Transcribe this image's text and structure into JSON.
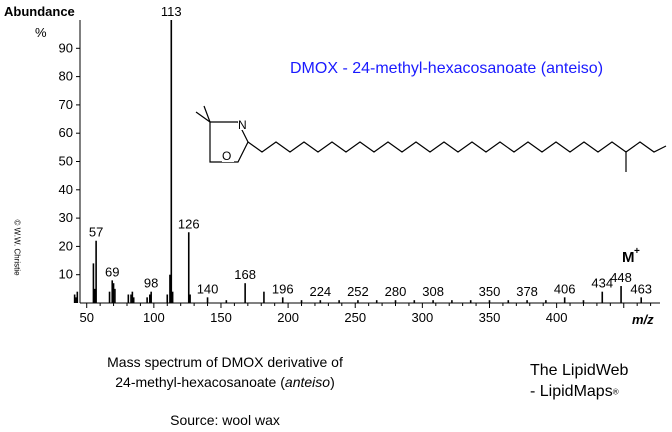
{
  "chart_data": {
    "type": "bar",
    "title": "DMOX  -  24-methyl-hexacosanoate  (anteiso)",
    "ylabel": "Abundance",
    "yunit": "%",
    "xlabel": "m/z",
    "xlim": [
      45,
      477
    ],
    "ylim": [
      0,
      100
    ],
    "x_ticks": [
      50,
      100,
      150,
      200,
      250,
      300,
      350,
      400
    ],
    "y_ticks": [
      10,
      20,
      30,
      40,
      50,
      60,
      70,
      80,
      90
    ],
    "molecular_ion_label": "M",
    "molecular_ion_sup": "+",
    "peaks": [
      {
        "x": 41,
        "y": 3
      },
      {
        "x": 42,
        "y": 2
      },
      {
        "x": 43,
        "y": 4
      },
      {
        "x": 55,
        "y": 14
      },
      {
        "x": 56,
        "y": 5
      },
      {
        "x": 57,
        "y": 22
      },
      {
        "x": 67,
        "y": 4
      },
      {
        "x": 69,
        "y": 8
      },
      {
        "x": 70,
        "y": 7
      },
      {
        "x": 71,
        "y": 5
      },
      {
        "x": 81,
        "y": 3
      },
      {
        "x": 83,
        "y": 3
      },
      {
        "x": 84,
        "y": 4
      },
      {
        "x": 85,
        "y": 2
      },
      {
        "x": 95,
        "y": 2
      },
      {
        "x": 97,
        "y": 3
      },
      {
        "x": 98,
        "y": 4
      },
      {
        "x": 110,
        "y": 3
      },
      {
        "x": 112,
        "y": 10
      },
      {
        "x": 113,
        "y": 100
      },
      {
        "x": 114,
        "y": 4
      },
      {
        "x": 126,
        "y": 25
      },
      {
        "x": 127,
        "y": 3
      },
      {
        "x": 140,
        "y": 2
      },
      {
        "x": 154,
        "y": 1
      },
      {
        "x": 168,
        "y": 7
      },
      {
        "x": 182,
        "y": 4
      },
      {
        "x": 196,
        "y": 2
      },
      {
        "x": 210,
        "y": 1
      },
      {
        "x": 224,
        "y": 1
      },
      {
        "x": 238,
        "y": 1
      },
      {
        "x": 252,
        "y": 1
      },
      {
        "x": 266,
        "y": 1
      },
      {
        "x": 280,
        "y": 1
      },
      {
        "x": 294,
        "y": 1
      },
      {
        "x": 308,
        "y": 1
      },
      {
        "x": 322,
        "y": 1
      },
      {
        "x": 336,
        "y": 1
      },
      {
        "x": 350,
        "y": 1
      },
      {
        "x": 364,
        "y": 1
      },
      {
        "x": 378,
        "y": 1
      },
      {
        "x": 392,
        "y": 1
      },
      {
        "x": 406,
        "y": 2
      },
      {
        "x": 420,
        "y": 1
      },
      {
        "x": 434,
        "y": 4
      },
      {
        "x": 448,
        "y": 6
      },
      {
        "x": 463,
        "y": 2
      }
    ],
    "peak_labels": [
      {
        "x": 57,
        "y": 22,
        "text": "57"
      },
      {
        "x": 69,
        "y": 8,
        "text": "69"
      },
      {
        "x": 98,
        "y": 4,
        "text": "98"
      },
      {
        "x": 113,
        "y": 100,
        "text": "113"
      },
      {
        "x": 126,
        "y": 25,
        "text": "126"
      },
      {
        "x": 140,
        "y": 2,
        "text": "140"
      },
      {
        "x": 168,
        "y": 7,
        "text": "168"
      },
      {
        "x": 196,
        "y": 2,
        "text": "196"
      },
      {
        "x": 224,
        "y": 1,
        "text": "224"
      },
      {
        "x": 252,
        "y": 1,
        "text": "252"
      },
      {
        "x": 280,
        "y": 1,
        "text": "280"
      },
      {
        "x": 308,
        "y": 1,
        "text": "308"
      },
      {
        "x": 350,
        "y": 1,
        "text": "350"
      },
      {
        "x": 378,
        "y": 1,
        "text": "378"
      },
      {
        "x": 406,
        "y": 2,
        "text": "406"
      },
      {
        "x": 434,
        "y": 4,
        "text": "434"
      },
      {
        "x": 448,
        "y": 6,
        "text": "448"
      },
      {
        "x": 463,
        "y": 2,
        "text": "463"
      }
    ]
  },
  "structure": {
    "ring_atom_n": "N",
    "ring_atom_o": "O"
  },
  "caption": {
    "line1": "Mass spectrum of DMOX derivative of",
    "line2_prefix": "24-methyl-hexacosanoate (",
    "line2_italic": "anteiso",
    "line2_suffix": ")",
    "source": "Source: wool wax"
  },
  "brand": {
    "line1": "The LipidWeb",
    "line2": "- LipidMaps",
    "mark": "®"
  },
  "copyright": "© W.W. Christie",
  "colors": {
    "title": "#1a1aff",
    "bars": "#000000"
  }
}
